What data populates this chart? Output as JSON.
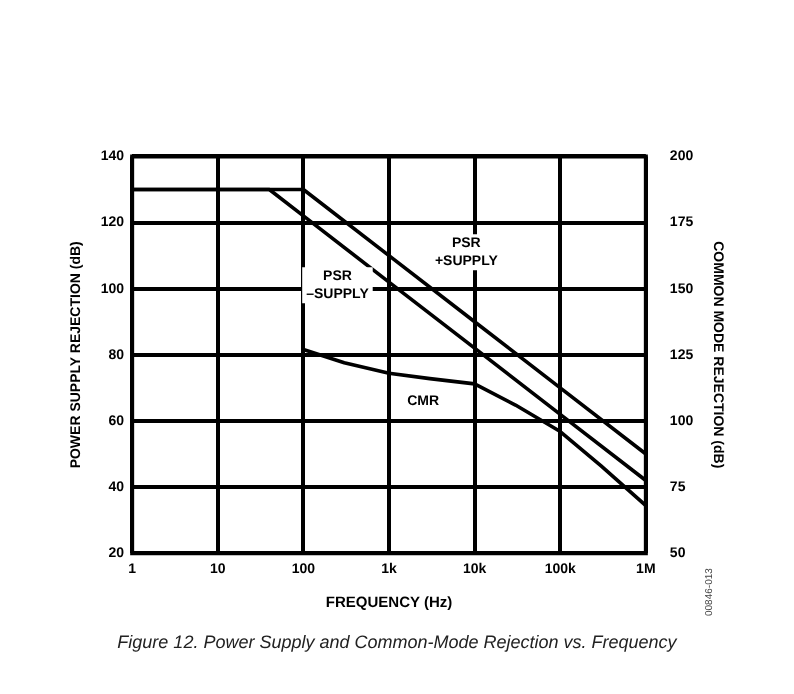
{
  "chart_data": {
    "type": "line",
    "xlabel": "FREQUENCY (Hz)",
    "ylabel": "POWER SUPPLY REJECTION (dB)",
    "y2label": "COMMON MODE REJECTION (dB)",
    "log": "x",
    "grid": true,
    "legend": false,
    "marker": "none",
    "line_style": "solid",
    "xlim": [
      1,
      1000000
    ],
    "xticks": [
      1,
      10,
      100,
      {
        "value": 1000,
        "label": "1k"
      },
      {
        "value": 10000,
        "label": "10k"
      },
      {
        "value": 100000,
        "label": "100k"
      },
      {
        "value": 1000000,
        "label": "1M"
      }
    ],
    "ylim": [
      20,
      140
    ],
    "yticks": [
      20,
      40,
      60,
      80,
      100,
      120,
      140
    ],
    "y2lim": [
      50,
      200
    ],
    "y2ticks": [
      50,
      75,
      100,
      125,
      150,
      175,
      200
    ],
    "series": [
      {
        "color": "#000000",
        "x": [
          1,
          100,
          1000,
          10000,
          100000,
          1000000
        ],
        "values": [
          130,
          130,
          110,
          90,
          70,
          50
        ]
      },
      {
        "color": "#000000",
        "x": [
          1,
          40,
          100,
          1000,
          10000,
          100000,
          1000000
        ],
        "values": [
          130,
          130,
          122,
          102,
          82,
          62,
          42
        ]
      },
      {
        "color": "#000000",
        "axis": "y2",
        "x": [
          100,
          300,
          1000,
          3000,
          10000,
          30000,
          100000,
          300000,
          1000000
        ],
        "values": [
          127,
          122,
          118,
          116,
          114,
          106,
          96,
          83,
          68
        ]
      }
    ],
    "annotations": [
      {
        "text": "PSR\n+SUPPLY",
        "x": 8000,
        "y": 111
      },
      {
        "text": "PSR\n–SUPPLY",
        "x": 250,
        "y": 101
      },
      {
        "text": "CMR",
        "x": 2500,
        "y": 66
      },
      "Figure 12. Power Supply and Common-Mode Rejection vs. Frequency",
      "00846-013"
    ]
  }
}
